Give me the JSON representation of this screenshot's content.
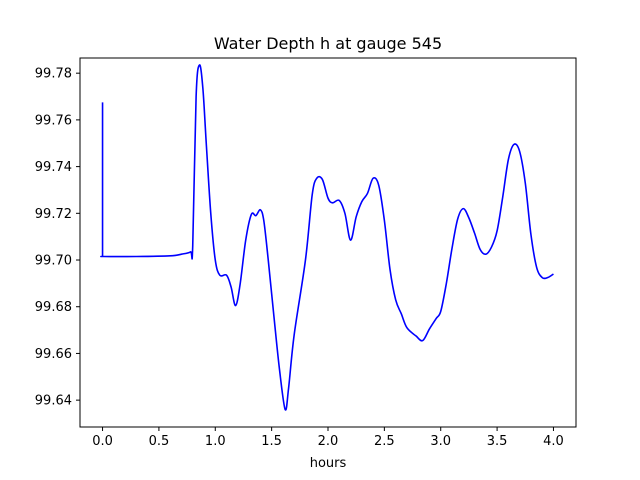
{
  "chart_data": {
    "type": "line",
    "title": "Water Depth h at gauge 545",
    "xlabel": "hours",
    "ylabel": "",
    "xlim": [
      -0.2,
      4.2
    ],
    "ylim": [
      99.6285,
      99.7865
    ],
    "xticks": [
      0.0,
      0.5,
      1.0,
      1.5,
      2.0,
      2.5,
      3.0,
      3.5,
      4.0
    ],
    "xtick_labels": [
      "0.0",
      "0.5",
      "1.0",
      "1.5",
      "2.0",
      "2.5",
      "3.0",
      "3.5",
      "4.0"
    ],
    "yticks": [
      99.64,
      99.66,
      99.68,
      99.7,
      99.72,
      99.74,
      99.76,
      99.78
    ],
    "ytick_labels": [
      "99.64",
      "99.66",
      "99.68",
      "99.70",
      "99.72",
      "99.74",
      "99.76",
      "99.78"
    ],
    "grid": false,
    "series": [
      {
        "color": "#0000ff",
        "x": [
          0.0,
          0.0,
          0.01,
          0.3,
          0.6,
          0.7,
          0.78,
          0.8,
          0.83,
          0.86,
          0.89,
          0.92,
          0.96,
          1.0,
          1.04,
          1.1,
          1.14,
          1.18,
          1.22,
          1.27,
          1.32,
          1.36,
          1.4,
          1.43,
          1.47,
          1.52,
          1.57,
          1.62,
          1.65,
          1.7,
          1.8,
          1.86,
          1.9,
          1.95,
          2.0,
          2.04,
          2.1,
          2.15,
          2.2,
          2.25,
          2.3,
          2.35,
          2.4,
          2.45,
          2.5,
          2.55,
          2.6,
          2.65,
          2.7,
          2.78,
          2.84,
          2.9,
          2.96,
          3.0,
          3.05,
          3.1,
          3.15,
          3.2,
          3.25,
          3.3,
          3.35,
          3.4,
          3.45,
          3.5,
          3.55,
          3.6,
          3.65,
          3.7,
          3.75,
          3.8,
          3.85,
          3.9,
          3.95,
          4.0
        ],
        "values": [
          99.7675,
          99.7015,
          99.7015,
          99.7015,
          99.7018,
          99.7025,
          99.7035,
          99.706,
          99.77,
          99.7835,
          99.7735,
          99.75,
          99.72,
          99.7,
          99.6935,
          99.6935,
          99.6885,
          99.6805,
          99.6895,
          99.7085,
          99.7195,
          99.719,
          99.7215,
          99.717,
          99.7,
          99.676,
          99.653,
          99.636,
          99.645,
          99.668,
          99.7,
          99.728,
          99.735,
          99.7345,
          99.7265,
          99.7245,
          99.7255,
          99.72,
          99.7085,
          99.7185,
          99.725,
          99.7285,
          99.735,
          99.732,
          99.717,
          99.696,
          99.683,
          99.677,
          99.671,
          99.6675,
          99.6655,
          99.6705,
          99.675,
          99.678,
          99.69,
          99.705,
          99.7175,
          99.722,
          99.718,
          99.7115,
          99.7045,
          99.7025,
          99.7055,
          99.7125,
          99.727,
          99.743,
          99.7495,
          99.7465,
          99.733,
          99.711,
          99.697,
          99.6925,
          99.6925,
          99.694
        ]
      }
    ]
  }
}
